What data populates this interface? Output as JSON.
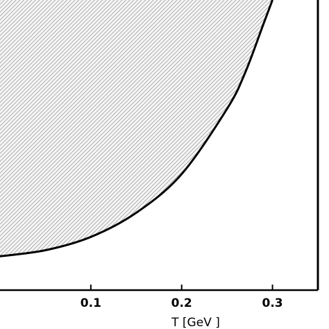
{
  "chart_data": {
    "type": "area",
    "title": "",
    "xlabel": "T [GeV  ]",
    "ylabel": "",
    "xlim": [
      0.0,
      0.35
    ],
    "x_ticks": [
      {
        "value": 0.1,
        "label": "0.1"
      },
      {
        "value": 0.2,
        "label": "0.2"
      },
      {
        "value": 0.3,
        "label": "0.3"
      }
    ],
    "grid": false,
    "legend": "none",
    "vertical_line_x": 0.35,
    "series": [
      {
        "fill": "hatched",
        "x": [
          0.0,
          0.05,
          0.1,
          0.15,
          0.2,
          0.25,
          0.27,
          0.29,
          0.3
        ],
        "y": [
          0.14,
          0.165,
          0.22,
          0.32,
          0.48,
          0.75,
          0.9,
          1.1,
          1.2
        ]
      }
    ],
    "ylim": [
      0.0,
      1.2
    ],
    "colors": {
      "curve": "#000000",
      "hatch": "#9a9a9a",
      "hatch_background": "#f6f6f6"
    }
  }
}
